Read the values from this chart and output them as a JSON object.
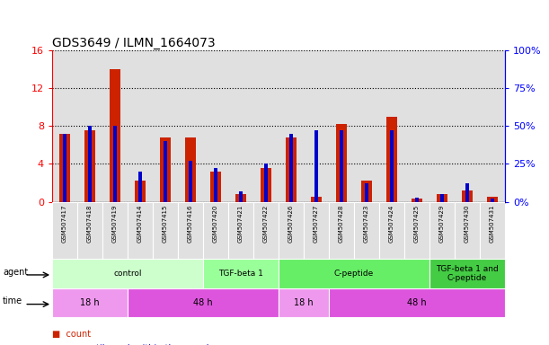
{
  "title": "GDS3649 / ILMN_1664073",
  "samples": [
    "GSM507417",
    "GSM507418",
    "GSM507419",
    "GSM507414",
    "GSM507415",
    "GSM507416",
    "GSM507420",
    "GSM507421",
    "GSM507422",
    "GSM507426",
    "GSM507427",
    "GSM507428",
    "GSM507423",
    "GSM507424",
    "GSM507425",
    "GSM507429",
    "GSM507430",
    "GSM507431"
  ],
  "counts": [
    7.2,
    7.5,
    14.0,
    2.2,
    6.8,
    6.8,
    3.2,
    0.8,
    3.6,
    6.8,
    0.5,
    8.2,
    2.2,
    9.0,
    0.3,
    0.8,
    1.2,
    0.5
  ],
  "percentiles": [
    45,
    50,
    50,
    20,
    40,
    27,
    22,
    7,
    25,
    45,
    47,
    47,
    12,
    47,
    3,
    5,
    12,
    2
  ],
  "ylim_left": [
    0,
    16
  ],
  "ylim_right": [
    0,
    100
  ],
  "yticks_left": [
    0,
    4,
    8,
    12,
    16
  ],
  "ytick_labels_left": [
    "0",
    "4",
    "8",
    "12",
    "16"
  ],
  "yticks_right": [
    0,
    25,
    50,
    75,
    100
  ],
  "ytick_labels_right": [
    "0%",
    "25%",
    "50%",
    "75%",
    "100%"
  ],
  "agent_groups": [
    {
      "label": "control",
      "start": 0,
      "end": 6,
      "color": "#ccffcc"
    },
    {
      "label": "TGF-beta 1",
      "start": 6,
      "end": 9,
      "color": "#99ff99"
    },
    {
      "label": "C-peptide",
      "start": 9,
      "end": 15,
      "color": "#66ee66"
    },
    {
      "label": "TGF-beta 1 and\nC-peptide",
      "start": 15,
      "end": 18,
      "color": "#44cc44"
    }
  ],
  "time_groups": [
    {
      "label": "18 h",
      "start": 0,
      "end": 3,
      "color": "#ee99ee"
    },
    {
      "label": "48 h",
      "start": 3,
      "end": 9,
      "color": "#dd55dd"
    },
    {
      "label": "18 h",
      "start": 9,
      "end": 11,
      "color": "#ee99ee"
    },
    {
      "label": "48 h",
      "start": 11,
      "end": 18,
      "color": "#dd55dd"
    }
  ],
  "count_color": "#cc2200",
  "percentile_color": "#0000cc",
  "grid_color": "#000000",
  "bg_color": "#ffffff",
  "col_bg_color": "#e0e0e0",
  "label_fontsize": 7,
  "title_fontsize": 10,
  "red_bar_width": 0.45,
  "blue_bar_width": 0.15
}
